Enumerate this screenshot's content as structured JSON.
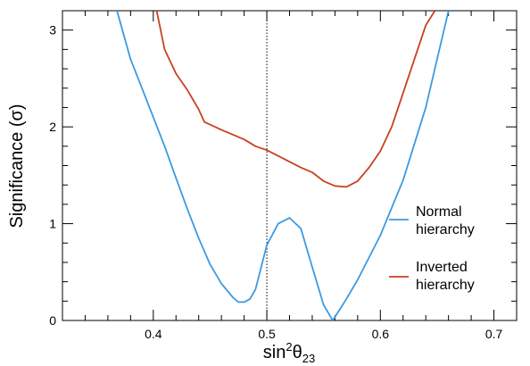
{
  "chart_data": {
    "type": "line",
    "xlabel": "sin²θ₂₃",
    "xlabel_parts": {
      "base": "sin",
      "sup": "2",
      "theta": "θ",
      "sub": "23"
    },
    "ylabel": "Significance (σ)",
    "xlim": [
      0.32,
      0.72
    ],
    "ylim": [
      0,
      3.2
    ],
    "xticks": [
      0.4,
      0.5,
      0.6,
      0.7
    ],
    "xtick_labels": [
      "0.4",
      "0.5",
      "0.6",
      "0.7"
    ],
    "yticks": [
      0,
      1,
      2,
      3
    ],
    "ytick_labels": [
      "0",
      "1",
      "2",
      "3"
    ],
    "grid": false,
    "legend_position": "right",
    "reference_line": {
      "x": 0.5,
      "style": "dotted"
    },
    "series": [
      {
        "name": "Normal hierarchy",
        "legend_lines": [
          "Normal",
          "hierarchy"
        ],
        "color": "#3b9ae1",
        "x": [
          0.368,
          0.38,
          0.39,
          0.4,
          0.41,
          0.42,
          0.43,
          0.44,
          0.45,
          0.46,
          0.47,
          0.475,
          0.48,
          0.485,
          0.49,
          0.5,
          0.51,
          0.52,
          0.53,
          0.54,
          0.55,
          0.558,
          0.57,
          0.58,
          0.6,
          0.62,
          0.64,
          0.65,
          0.66
        ],
        "y": [
          3.2,
          2.7,
          2.4,
          2.1,
          1.8,
          1.47,
          1.15,
          0.85,
          0.58,
          0.38,
          0.24,
          0.19,
          0.19,
          0.22,
          0.32,
          0.78,
          1.0,
          1.06,
          0.95,
          0.55,
          0.16,
          0.0,
          0.22,
          0.42,
          0.88,
          1.45,
          2.2,
          2.7,
          3.2
        ]
      },
      {
        "name": "Inverted hierarchy",
        "legend_lines": [
          "Inverted",
          "hierarchy"
        ],
        "color": "#c8411e",
        "x": [
          0.403,
          0.41,
          0.42,
          0.43,
          0.44,
          0.445,
          0.46,
          0.47,
          0.48,
          0.49,
          0.5,
          0.51,
          0.52,
          0.53,
          0.54,
          0.55,
          0.56,
          0.57,
          0.58,
          0.59,
          0.6,
          0.61,
          0.62,
          0.63,
          0.64,
          0.648
        ],
        "y": [
          3.2,
          2.8,
          2.55,
          2.38,
          2.18,
          2.05,
          1.97,
          1.92,
          1.87,
          1.8,
          1.76,
          1.7,
          1.64,
          1.58,
          1.53,
          1.44,
          1.39,
          1.38,
          1.44,
          1.58,
          1.75,
          2.0,
          2.35,
          2.7,
          3.05,
          3.2
        ]
      }
    ]
  }
}
